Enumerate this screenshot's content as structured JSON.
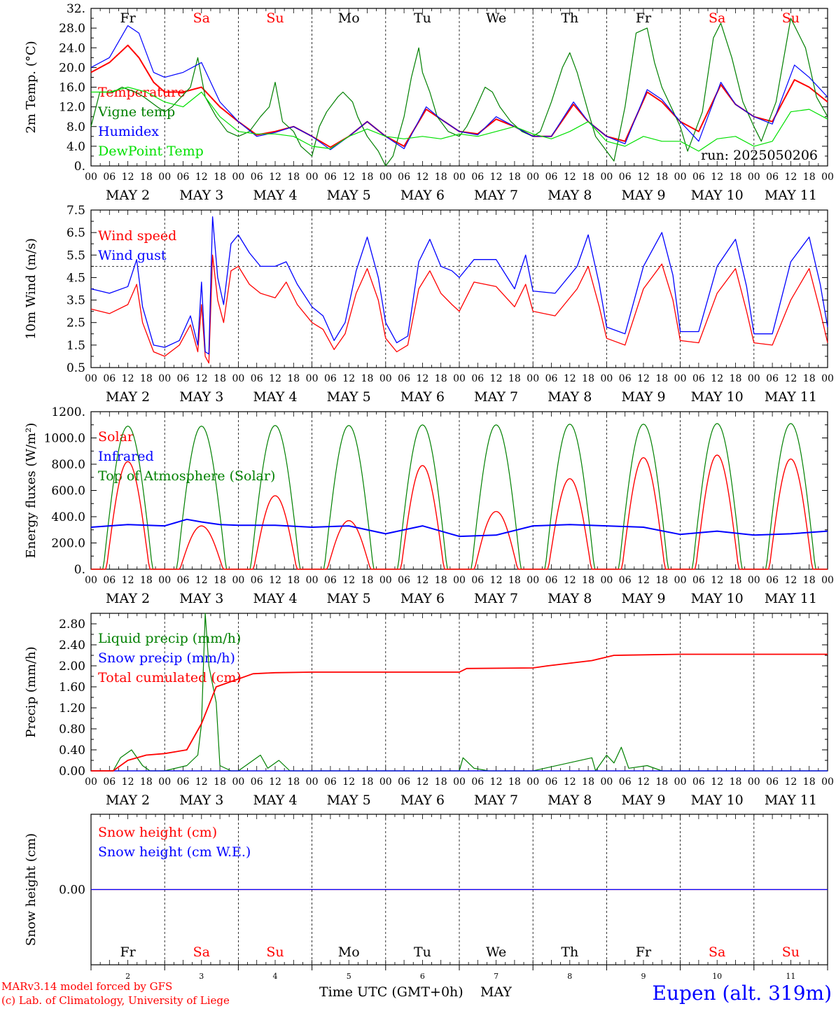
{
  "days": {
    "weekday_labels": [
      "Fr",
      "Sa",
      "Su",
      "Mo",
      "Tu",
      "We",
      "Th",
      "Fr",
      "Sa",
      "Su"
    ],
    "weekend_flags": [
      false,
      true,
      true,
      false,
      false,
      false,
      false,
      false,
      true,
      true
    ],
    "date_labels": [
      "MAY  2",
      "MAY  3",
      "MAY  4",
      "MAY  5",
      "MAY  6",
      "MAY  7",
      "MAY  8",
      "MAY  9",
      "MAY 10",
      "MAY 11"
    ],
    "hour_labels": [
      "00",
      "06",
      "12",
      "18"
    ],
    "final_hour_label": "00",
    "day_numbers": [
      "2",
      "3",
      "4",
      "5",
      "6",
      "7",
      "8",
      "9",
      "10",
      "11"
    ]
  },
  "colors": {
    "red": "#ff0000",
    "green": "#008000",
    "blue": "#0000ff",
    "lightgreen": "#00e000",
    "black": "#000000"
  },
  "panels": {
    "temperature": {
      "ylabel": "2m Temp. (°C)",
      "tick_labels": [
        "0.",
        "4.0",
        "8.0",
        "12.0",
        "16.0",
        "20.0",
        "24.0",
        "28.0",
        "32."
      ],
      "legend": [
        "Temperature",
        "Vigne temp",
        "Humidex",
        "DewPoint Temp"
      ],
      "run_label": "run: 2025050206"
    },
    "wind": {
      "ylabel": "10m Wind (m/s)",
      "tick_labels": [
        "0.5",
        "1.5",
        "2.5",
        "3.5",
        "4.5",
        "5.5",
        "6.5",
        "7.5"
      ],
      "legend": [
        "Wind speed",
        "Wind gust"
      ]
    },
    "energy": {
      "ylabel": "Energy fluxes (W/m²)",
      "tick_labels": [
        "0.",
        "200.0",
        "400.0",
        "600.0",
        "800.0",
        "1000.0",
        "1200."
      ],
      "legend": [
        "Solar",
        "Infrared",
        "Top of Atmosphere (Solar)"
      ]
    },
    "precip": {
      "ylabel": "Precip (mm/h)",
      "tick_labels": [
        "0.00",
        "0.40",
        "0.80",
        "1.20",
        "1.60",
        "2.00",
        "2.40",
        "2.80"
      ],
      "legend": [
        "Liquid precip (mm/h)",
        "Snow precip (mm/h)",
        "Total cumulated (cm)"
      ]
    },
    "snow": {
      "ylabel": "Snow height (cm)",
      "tick_labels": [
        "0.00"
      ],
      "legend": [
        "Snow height (cm)",
        "Snow height (cm W.E.)"
      ]
    }
  },
  "footer": {
    "model": "MARv3.14 model forced by GFS",
    "lab": "(c) Lab. of Climatology, University of Liege",
    "xaxis_title": "Time UTC (GMT+0h)",
    "month": "MAY",
    "station": "Eupen (alt. 319m)"
  },
  "chart_data": [
    {
      "type": "line",
      "title": "",
      "ylabel": "2m Temp. (°C)",
      "ylim": [
        0,
        32
      ],
      "x_unit": "days since May 2 00 UTC",
      "series": [
        {
          "name": "Temperature",
          "color": "#ff0000",
          "x": [
            0,
            0.25,
            0.5,
            0.65,
            0.85,
            1,
            1.25,
            1.5,
            1.75,
            2,
            2.25,
            2.5,
            2.75,
            3,
            3.25,
            3.5,
            3.75,
            4,
            4.25,
            4.55,
            4.75,
            5,
            5.25,
            5.5,
            5.75,
            6,
            6.25,
            6.55,
            6.75,
            7,
            7.25,
            7.55,
            7.75,
            8,
            8.25,
            8.55,
            8.75,
            9,
            9.25,
            9.55,
            9.75,
            10
          ],
          "y": [
            19,
            21,
            24.5,
            22,
            17,
            15,
            15,
            16,
            12,
            9,
            6.3,
            7,
            8,
            6,
            3.8,
            6,
            9,
            6,
            4,
            11.5,
            9.5,
            7,
            6.5,
            9.5,
            8,
            6,
            6,
            12.5,
            9,
            6,
            5,
            15,
            13,
            9,
            7,
            16.5,
            12.5,
            10,
            9,
            17.5,
            16,
            13
          ]
        },
        {
          "name": "Vigne temp",
          "color": "#008000",
          "x": [
            0,
            0.12,
            0.3,
            0.42,
            0.6,
            0.72,
            0.9,
            1,
            1.1,
            1.35,
            1.45,
            1.55,
            1.7,
            1.85,
            2,
            2.15,
            2.3,
            2.42,
            2.5,
            2.6,
            2.75,
            2.85,
            3,
            3.1,
            3.2,
            3.35,
            3.42,
            3.55,
            3.62,
            3.75,
            3.9,
            4,
            4.1,
            4.25,
            4.35,
            4.45,
            4.5,
            4.6,
            4.7,
            4.85,
            5,
            5.1,
            5.2,
            5.35,
            5.45,
            5.55,
            5.7,
            5.85,
            6,
            6.1,
            6.25,
            6.4,
            6.5,
            6.6,
            6.75,
            6.85,
            7,
            7.1,
            7.25,
            7.4,
            7.55,
            7.65,
            7.75,
            8,
            8.1,
            8.3,
            8.45,
            8.55,
            8.7,
            8.85,
            9,
            9.1,
            9.3,
            9.5,
            9.7,
            9.85,
            10
          ],
          "y": [
            8,
            15,
            15,
            16,
            15,
            14,
            12,
            11,
            12,
            16,
            22,
            14,
            10,
            7,
            6,
            7,
            10,
            12,
            17,
            9,
            7,
            4,
            2,
            8,
            11,
            14,
            15,
            13,
            10,
            6,
            3,
            0,
            2,
            10,
            18,
            24,
            19,
            15,
            10,
            7,
            6,
            8,
            11,
            16,
            15,
            12,
            9,
            7,
            6,
            7,
            13,
            20,
            23,
            19,
            11,
            6,
            3,
            1,
            12,
            27,
            28,
            21,
            16,
            8,
            3,
            11,
            26,
            29,
            22,
            13,
            8,
            5,
            13,
            30,
            24,
            14,
            10
          ]
        },
        {
          "name": "Humidex",
          "color": "#0000ff",
          "x": [
            0,
            0.25,
            0.5,
            0.65,
            0.85,
            1,
            1.25,
            1.5,
            1.75,
            2,
            2.25,
            2.5,
            2.75,
            3,
            3.25,
            3.5,
            3.75,
            4,
            4.25,
            4.55,
            4.75,
            5,
            5.25,
            5.5,
            5.75,
            6,
            6.25,
            6.55,
            6.75,
            7,
            7.25,
            7.55,
            7.75,
            8,
            8.25,
            8.55,
            8.75,
            9,
            9.25,
            9.55,
            9.75,
            10
          ],
          "y": [
            20,
            22,
            28.5,
            27,
            19,
            18,
            19,
            21,
            13,
            9,
            6,
            6.8,
            8,
            6,
            3.3,
            6,
            9,
            6,
            3.5,
            12,
            9.5,
            7,
            6.3,
            10,
            8,
            6,
            6,
            13,
            9,
            6,
            4.5,
            15.5,
            13.5,
            9,
            5,
            17,
            12.5,
            10,
            8.5,
            20.5,
            18,
            14
          ]
        },
        {
          "name": "DewPoint Temp",
          "color": "#00e000",
          "x": [
            0,
            0.25,
            0.5,
            0.75,
            1,
            1.25,
            1.5,
            1.75,
            2,
            2.25,
            2.5,
            2.75,
            3,
            3.25,
            3.5,
            3.75,
            4,
            4.25,
            4.5,
            4.75,
            5,
            5.25,
            5.5,
            5.75,
            6,
            6.25,
            6.5,
            6.75,
            7,
            7.25,
            7.5,
            7.75,
            8,
            8.25,
            8.5,
            8.75,
            9,
            9.25,
            9.5,
            9.75,
            10
          ],
          "y": [
            15,
            15,
            16,
            15,
            13,
            12,
            15,
            10,
            7,
            6.5,
            6.5,
            6,
            4,
            3.5,
            6,
            7.5,
            6,
            5.5,
            6,
            5.5,
            6.5,
            6,
            7,
            8,
            6.5,
            5.5,
            7,
            9,
            5,
            4,
            6,
            5,
            5,
            3,
            5.5,
            6,
            4,
            5,
            11,
            11.5,
            9.5
          ]
        }
      ]
    },
    {
      "type": "line",
      "title": "",
      "ylabel": "10m Wind (m/s)",
      "ylim": [
        0.5,
        7.5
      ],
      "x_unit": "days since May 2 00 UTC",
      "series": [
        {
          "name": "Wind speed",
          "color": "#ff0000",
          "x": [
            0,
            0.25,
            0.5,
            0.62,
            0.7,
            0.85,
            1,
            1.2,
            1.35,
            1.45,
            1.5,
            1.55,
            1.6,
            1.65,
            1.72,
            1.8,
            1.9,
            2,
            2.15,
            2.3,
            2.5,
            2.65,
            2.8,
            3,
            3.15,
            3.3,
            3.45,
            3.6,
            3.75,
            3.9,
            4,
            4.15,
            4.3,
            4.45,
            4.6,
            4.75,
            4.9,
            5,
            5.2,
            5.5,
            5.75,
            5.9,
            6,
            6.3,
            6.6,
            6.75,
            6.9,
            7,
            7.25,
            7.5,
            7.75,
            7.9,
            8,
            8.25,
            8.5,
            8.75,
            8.9,
            9,
            9.25,
            9.5,
            9.75,
            9.9,
            10
          ],
          "y": [
            3.1,
            2.9,
            3.3,
            4.2,
            2.5,
            1.2,
            1,
            1.5,
            2.4,
            1.2,
            3.3,
            1,
            0.7,
            5.5,
            3.5,
            2.5,
            4.8,
            5,
            4.2,
            3.8,
            3.6,
            4.3,
            3.3,
            2.5,
            2.2,
            1.3,
            2,
            3.8,
            4.9,
            3.5,
            1.8,
            1.2,
            1.5,
            4,
            4.8,
            3.8,
            3.3,
            3,
            4.3,
            4.1,
            3.2,
            4.2,
            3,
            2.8,
            4,
            5,
            3.2,
            1.8,
            1.5,
            4,
            5.1,
            3.5,
            1.7,
            1.6,
            3.8,
            4.9,
            3,
            1.6,
            1.5,
            3.5,
            4.9,
            3,
            1.6
          ]
        },
        {
          "name": "Wind gust",
          "color": "#0000ff",
          "x": [
            0,
            0.25,
            0.5,
            0.62,
            0.7,
            0.85,
            1,
            1.2,
            1.35,
            1.45,
            1.5,
            1.55,
            1.6,
            1.65,
            1.72,
            1.8,
            1.9,
            2,
            2.15,
            2.3,
            2.5,
            2.65,
            2.8,
            3,
            3.15,
            3.3,
            3.45,
            3.6,
            3.75,
            3.9,
            4,
            4.15,
            4.3,
            4.45,
            4.6,
            4.75,
            4.9,
            5,
            5.2,
            5.5,
            5.75,
            5.9,
            6,
            6.3,
            6.6,
            6.75,
            6.9,
            7,
            7.25,
            7.5,
            7.75,
            7.9,
            8,
            8.25,
            8.5,
            8.75,
            8.9,
            9,
            9.25,
            9.5,
            9.75,
            9.9,
            10
          ],
          "y": [
            4,
            3.8,
            4.1,
            5.3,
            3.2,
            1.5,
            1.4,
            1.7,
            2.8,
            1.5,
            4.3,
            1.2,
            1.1,
            7.2,
            4.5,
            3.3,
            6,
            6.4,
            5.6,
            5,
            5,
            5.2,
            4.2,
            3.2,
            2.8,
            1.7,
            2.5,
            4.8,
            6.3,
            4.5,
            2.5,
            1.6,
            1.9,
            5.2,
            6.2,
            5,
            4.8,
            4.5,
            5.3,
            5.3,
            4,
            5.5,
            3.9,
            3.8,
            5,
            6.4,
            4.2,
            2.3,
            2,
            5,
            6.5,
            4.6,
            2.1,
            2.1,
            5,
            6.2,
            4.1,
            2,
            2,
            5.2,
            6.3,
            4.2,
            2.3
          ]
        }
      ],
      "reference_line": 5
    },
    {
      "type": "line",
      "title": "",
      "ylabel": "Energy fluxes (W/m²)",
      "ylim": [
        0,
        1200
      ],
      "x_unit": "days since May 2 00 UTC",
      "series": [
        {
          "name": "Solar",
          "color": "#ff0000",
          "daily_peak": [
            820,
            330,
            560,
            370,
            790,
            440,
            690,
            850,
            870,
            840
          ]
        },
        {
          "name": "Infrared",
          "color": "#0000ff",
          "x": [
            0,
            0.5,
            1,
            1.3,
            1.5,
            1.75,
            2,
            2.5,
            3,
            3.5,
            4,
            4.5,
            5,
            5.5,
            6,
            6.5,
            7,
            7.5,
            8,
            8.5,
            9,
            9.5,
            10
          ],
          "y": [
            320,
            340,
            330,
            380,
            360,
            340,
            335,
            335,
            320,
            330,
            270,
            330,
            250,
            260,
            330,
            340,
            330,
            320,
            265,
            290,
            260,
            270,
            290
          ]
        },
        {
          "name": "Top of Atmosphere (Solar)",
          "color": "#008000",
          "daily_peak": [
            1090,
            1090,
            1095,
            1095,
            1100,
            1100,
            1105,
            1105,
            1110,
            1110
          ]
        }
      ]
    },
    {
      "type": "line",
      "title": "",
      "ylabel": "Precip (mm/h)",
      "ylim": [
        0,
        3
      ],
      "x_unit": "days since May 2 00 UTC",
      "series": [
        {
          "name": "Liquid precip (mm/h)",
          "color": "#008000",
          "x": [
            0,
            0.3,
            0.4,
            0.55,
            0.7,
            0.8,
            1,
            1.3,
            1.45,
            1.5,
            1.55,
            1.6,
            1.7,
            1.75,
            1.9,
            2,
            2.3,
            2.4,
            2.55,
            2.7,
            3,
            5,
            5.05,
            5.2,
            5.4,
            6,
            6.8,
            6.85,
            7,
            7.1,
            7.2,
            7.3,
            7.55,
            7.75,
            8,
            10
          ],
          "y": [
            0,
            0,
            0.25,
            0.4,
            0.1,
            0,
            0,
            0.1,
            0.3,
            0.9,
            3,
            2,
            1.3,
            0.1,
            0,
            0,
            0.3,
            0.05,
            0.2,
            0,
            0,
            0,
            0.25,
            0.05,
            0,
            0,
            0.25,
            0,
            0.3,
            0.15,
            0.45,
            0.05,
            0.1,
            0,
            0,
            0
          ]
        },
        {
          "name": "Snow precip (mm/h)",
          "color": "#0000ff",
          "x": [
            0,
            10
          ],
          "y": [
            0,
            0
          ]
        },
        {
          "name": "Total cumulated (cm)",
          "color": "#ff0000",
          "x": [
            0,
            0.3,
            0.5,
            0.75,
            1,
            1.3,
            1.5,
            1.7,
            1.9,
            2.2,
            2.5,
            3,
            4,
            5,
            5.1,
            6,
            6.2,
            6.8,
            7.1,
            8,
            10
          ],
          "y": [
            0,
            0,
            0.2,
            0.3,
            0.33,
            0.4,
            0.9,
            1.6,
            1.7,
            1.85,
            1.87,
            1.88,
            1.88,
            1.88,
            1.95,
            1.96,
            2.0,
            2.1,
            2.2,
            2.22,
            2.22
          ]
        }
      ]
    },
    {
      "type": "line",
      "title": "",
      "ylabel": "Snow height (cm)",
      "ylim": [
        -1,
        1
      ],
      "x_unit": "days since May 2 00 UTC",
      "series": [
        {
          "name": "Snow height (cm)",
          "color": "#ff0000",
          "x": [
            0,
            10
          ],
          "y": [
            0,
            0
          ]
        },
        {
          "name": "Snow height (cm W.E.)",
          "color": "#0000ff",
          "x": [
            0,
            10
          ],
          "y": [
            0,
            0
          ]
        }
      ]
    }
  ]
}
